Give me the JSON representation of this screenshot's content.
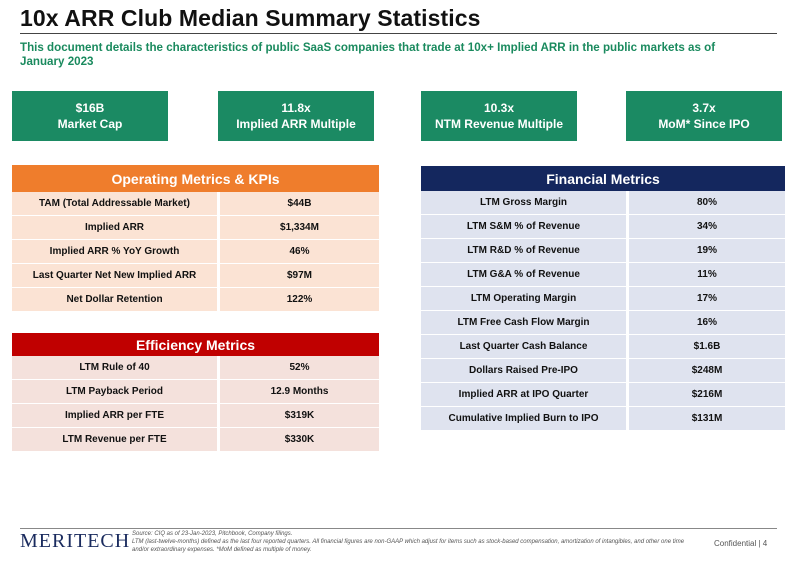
{
  "title": "10x ARR Club Median Summary Statistics",
  "subtitle": "This document details the characteristics of public SaaS companies that trade at 10x+ Implied ARR in the public markets as of January 2023",
  "kpis": [
    {
      "value": "$16B",
      "label": "Market Cap"
    },
    {
      "value": "11.8x",
      "label": "Implied ARR Multiple"
    },
    {
      "value": "10.3x",
      "label": "NTM Revenue Multiple"
    },
    {
      "value": "3.7x",
      "label": "MoM* Since IPO"
    }
  ],
  "operating": {
    "title": "Operating Metrics & KPIs",
    "rows": [
      {
        "label": "TAM (Total Addressable Market)",
        "value": "$44B"
      },
      {
        "label": "Implied ARR",
        "value": "$1,334M"
      },
      {
        "label": "Implied ARR % YoY Growth",
        "value": "46%"
      },
      {
        "label": "Last Quarter Net New Implied ARR",
        "value": "$97M"
      },
      {
        "label": "Net Dollar Retention",
        "value": "122%"
      }
    ]
  },
  "efficiency": {
    "title": "Efficiency Metrics",
    "rows": [
      {
        "label": "LTM Rule of 40",
        "value": "52%"
      },
      {
        "label": "LTM Payback Period",
        "value": "12.9 Months"
      },
      {
        "label": "Implied ARR per FTE",
        "value": "$319K"
      },
      {
        "label": "LTM Revenue per FTE",
        "value": "$330K"
      }
    ]
  },
  "financial": {
    "title": "Financial Metrics",
    "rows": [
      {
        "label": "LTM Gross Margin",
        "value": "80%"
      },
      {
        "label": "LTM S&M % of Revenue",
        "value": "34%"
      },
      {
        "label": "LTM R&D % of Revenue",
        "value": "19%"
      },
      {
        "label": "LTM G&A % of Revenue",
        "value": "11%"
      },
      {
        "label": "LTM Operating Margin",
        "value": "17%"
      },
      {
        "label": "LTM Free Cash Flow Margin",
        "value": "16%"
      },
      {
        "label": "Last Quarter Cash Balance",
        "value": "$1.6B"
      },
      {
        "label": "Dollars Raised Pre-IPO",
        "value": "$248M"
      },
      {
        "label": "Implied ARR at IPO Quarter",
        "value": "$216M"
      },
      {
        "label": "Cumulative Implied Burn to IPO",
        "value": "$131M"
      }
    ]
  },
  "footer": {
    "logo": "MERITECH",
    "source_line1": "Source: CIQ as of 23-Jan-2023, Pitchbook, Company filings.",
    "source_line2": "LTM (last-twelve-months) defined as the last four reported quarters. All financial figures are non-GAAP which adjust for items such as stock-based compensation, amortization of intangibles, and other one time and/or extraordinary expenses. *MoM defined as multiple of money.",
    "confidential": "Confidential | 4"
  },
  "colors": {
    "kpi_green": "#1b8a63",
    "subtitle_green": "#1a8a5e",
    "operating_header": "#ef7d2c",
    "operating_row": "#fbe3d4",
    "efficiency_header": "#c00000",
    "efficiency_row": "#f4e1dc",
    "financial_header": "#14275e",
    "financial_row": "#dfe3ef"
  }
}
